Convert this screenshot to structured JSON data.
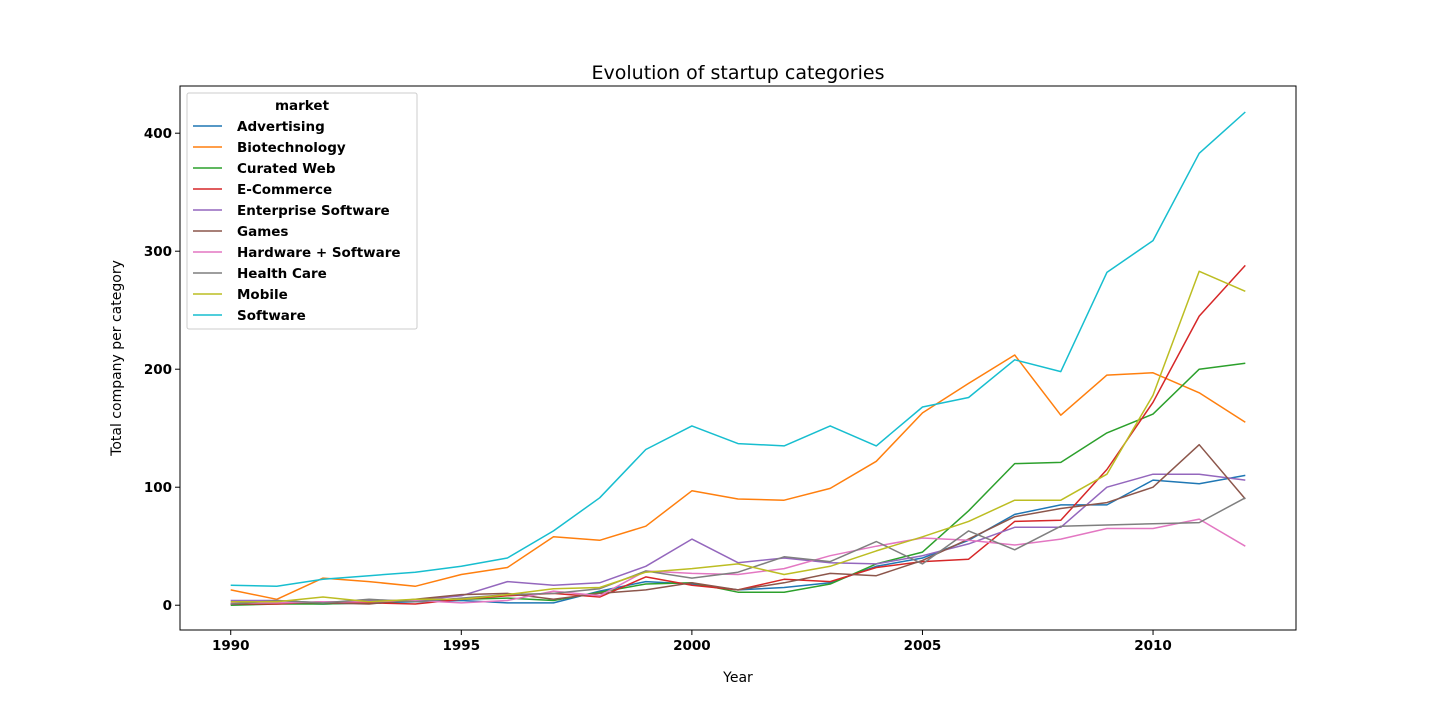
{
  "chart_data": {
    "type": "line",
    "title": "Evolution of startup categories",
    "xlabel": "Year",
    "ylabel": "Total company per category",
    "xlim": [
      1988.9,
      2013.1
    ],
    "ylim": [
      -21,
      440
    ],
    "x_ticks": [
      1990,
      1995,
      2000,
      2005,
      2010
    ],
    "y_ticks": [
      0,
      100,
      200,
      300,
      400
    ],
    "legend": {
      "title": "market",
      "position": "upper-left"
    },
    "grid": false,
    "x": [
      1990,
      1991,
      1992,
      1993,
      1994,
      1995,
      1996,
      1997,
      1998,
      1999,
      2000,
      2001,
      2002,
      2003,
      2004,
      2005,
      2006,
      2007,
      2008,
      2009,
      2010,
      2011,
      2012
    ],
    "series": [
      {
        "name": "Advertising",
        "color": "#1f77b4",
        "values": [
          1,
          2,
          1,
          2,
          3,
          4,
          2,
          2,
          12,
          20,
          18,
          13,
          15,
          19,
          33,
          40,
          55,
          77,
          85,
          85,
          106,
          103,
          110
        ]
      },
      {
        "name": "Biotechnology",
        "color": "#ff7f0e",
        "values": [
          13,
          5,
          23,
          20,
          16,
          26,
          32,
          58,
          55,
          67,
          97,
          90,
          89,
          99,
          122,
          163,
          188,
          212,
          161,
          195,
          197,
          180,
          155
        ]
      },
      {
        "name": "Curated Web",
        "color": "#2ca02c",
        "values": [
          0,
          1,
          1,
          2,
          4,
          5,
          6,
          4,
          11,
          18,
          19,
          11,
          11,
          18,
          35,
          45,
          80,
          120,
          121,
          146,
          162,
          200,
          205
        ]
      },
      {
        "name": "E-Commerce",
        "color": "#d62728",
        "values": [
          1,
          1,
          3,
          2,
          1,
          5,
          8,
          10,
          7,
          24,
          17,
          13,
          22,
          20,
          32,
          37,
          39,
          71,
          72,
          115,
          172,
          245,
          288
        ]
      },
      {
        "name": "Enterprise Software",
        "color": "#9467bd",
        "values": [
          4,
          4,
          2,
          4,
          4,
          8,
          20,
          17,
          19,
          33,
          56,
          36,
          40,
          36,
          35,
          42,
          52,
          66,
          66,
          100,
          111,
          111,
          106
        ]
      },
      {
        "name": "Games",
        "color": "#8c564b",
        "values": [
          1,
          2,
          2,
          1,
          5,
          9,
          10,
          5,
          10,
          13,
          19,
          13,
          19,
          27,
          25,
          38,
          56,
          75,
          82,
          87,
          100,
          136,
          90
        ]
      },
      {
        "name": "Hardware + Software",
        "color": "#e377c2",
        "values": [
          2,
          2,
          3,
          3,
          4,
          2,
          4,
          12,
          8,
          29,
          27,
          26,
          31,
          42,
          50,
          57,
          55,
          51,
          56,
          65,
          65,
          73,
          50
        ]
      },
      {
        "name": "Health Care",
        "color": "#7f7f7f",
        "values": [
          1,
          4,
          2,
          5,
          3,
          6,
          9,
          10,
          14,
          29,
          23,
          28,
          41,
          37,
          54,
          35,
          63,
          47,
          67,
          68,
          69,
          70,
          91
        ]
      },
      {
        "name": "Mobile",
        "color": "#bcbd22",
        "values": [
          3,
          3,
          7,
          3,
          5,
          5,
          9,
          14,
          15,
          28,
          31,
          35,
          26,
          33,
          46,
          58,
          71,
          89,
          89,
          111,
          178,
          283,
          266
        ]
      },
      {
        "name": "Software",
        "color": "#17becf",
        "values": [
          17,
          16,
          22,
          25,
          28,
          33,
          40,
          63,
          91,
          132,
          152,
          137,
          135,
          152,
          135,
          168,
          176,
          208,
          198,
          282,
          309,
          383,
          418
        ]
      }
    ]
  }
}
